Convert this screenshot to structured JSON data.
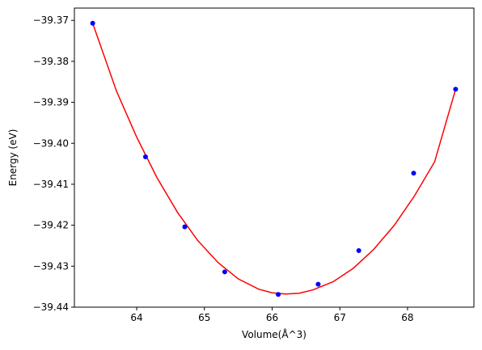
{
  "chart_data": {
    "type": "scatter",
    "xlabel": "Volume(Å^3)",
    "ylabel": "Energy (eV)",
    "xlim": [
      63.08,
      68.98
    ],
    "ylim": [
      -39.44,
      -39.367
    ],
    "x_ticks": [
      64,
      65,
      66,
      67,
      68
    ],
    "x_tick_labels": [
      "64",
      "65",
      "66",
      "67",
      "68"
    ],
    "y_ticks": [
      -39.37,
      -39.38,
      -39.39,
      -39.4,
      -39.41,
      -39.42,
      -39.43,
      -39.44
    ],
    "y_tick_labels": [
      "−39.37",
      "−39.38",
      "−39.39",
      "−39.40",
      "−39.41",
      "−39.42",
      "−39.43",
      "−39.44"
    ],
    "grid": false,
    "series": [
      {
        "kind": "points",
        "color": "#0000ff",
        "x": [
          63.35,
          64.13,
          64.71,
          65.3,
          66.09,
          66.68,
          67.28,
          68.09,
          68.71
        ],
        "y": [
          -39.3707,
          -39.4033,
          -39.4204,
          -39.4314,
          -39.4369,
          -39.4344,
          -39.4262,
          -39.4073,
          -39.3868
        ]
      },
      {
        "kind": "fit-curve",
        "color": "#ff0000",
        "x": [
          63.35,
          63.7,
          64.0,
          64.3,
          64.6,
          64.9,
          65.2,
          65.5,
          65.8,
          66.0,
          66.2,
          66.4,
          66.6,
          66.9,
          67.2,
          67.5,
          67.8,
          68.1,
          68.4,
          68.71
        ],
        "y": [
          -39.3707,
          -39.3872,
          -39.3985,
          -39.4084,
          -39.4168,
          -39.4237,
          -39.4291,
          -39.4331,
          -39.4356,
          -39.4365,
          -39.4368,
          -39.4366,
          -39.4358,
          -39.4338,
          -39.4305,
          -39.4259,
          -39.4201,
          -39.4129,
          -39.4045,
          -39.3868
        ]
      }
    ]
  }
}
